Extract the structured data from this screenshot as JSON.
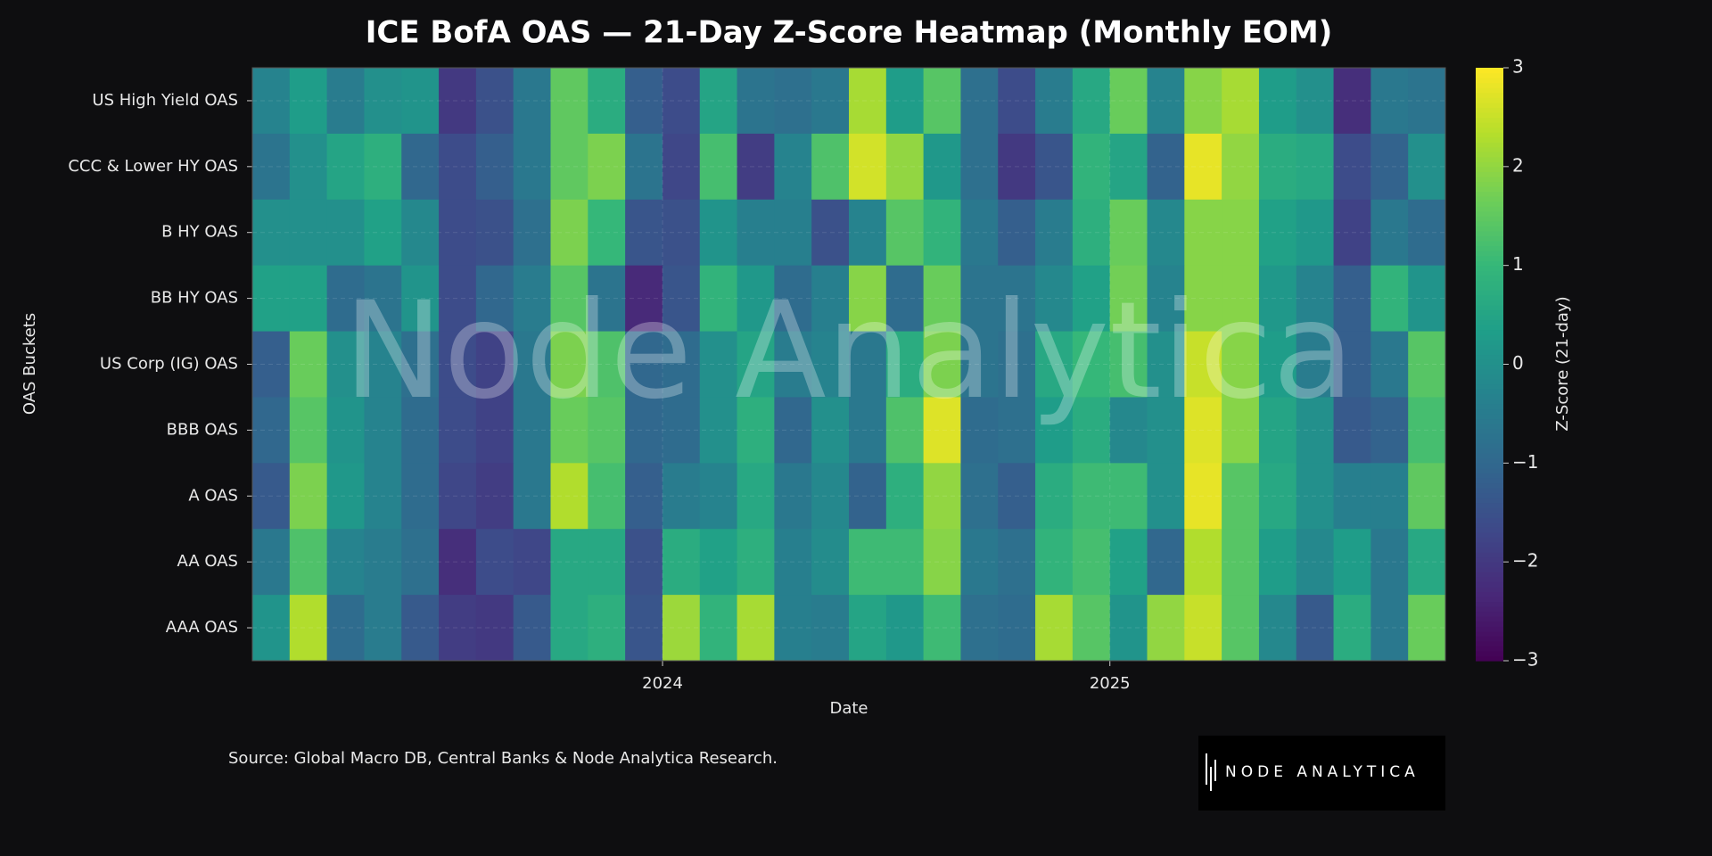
{
  "chart_data": {
    "type": "heatmap",
    "title": "ICE BofA OAS — 21-Day Z-Score Heatmap (Monthly EOM)",
    "x_label": "Date",
    "y_label": "OAS Buckets",
    "colorbar_label": "Z-Score (21-day)",
    "source": "Source: Global Macro DB, Central Banks & Node Analytica Research.",
    "watermark": "Node Analytica",
    "logo": "NODE ANALYTICA",
    "colormap": "viridis",
    "grid": true,
    "xlim": [
      2023.083,
      2025.75
    ],
    "xticks": [
      2024,
      2025
    ],
    "clim": [
      -3,
      3
    ],
    "cticks": [
      {
        "value": -3,
        "label": "−3"
      },
      {
        "value": -2,
        "label": "−2"
      },
      {
        "value": -1,
        "label": "−1"
      },
      0,
      1,
      2,
      3
    ],
    "categories": [
      "US High Yield OAS",
      "CCC & Lower HY OAS",
      "B HY OAS",
      "BB HY OAS",
      "US Corp (IG) OAS",
      "BBB OAS",
      "A OAS",
      "AA OAS",
      "AAA OAS"
    ],
    "values": [
      [
        -0.3,
        0.3,
        -0.5,
        0,
        0.1,
        -2,
        -1.5,
        -0.6,
        1.5,
        0.7,
        -1.2,
        -1.6,
        0.5,
        -0.7,
        -0.8,
        -0.6,
        2.2,
        0.3,
        1.4,
        -0.8,
        -1.6,
        -0.5,
        0.6,
        1.6,
        -0.3,
        1.9,
        2.2,
        0.3,
        0,
        -2.2,
        -0.6,
        -0.7
      ],
      [
        -0.7,
        0,
        0.5,
        0.8,
        -1,
        -1.6,
        -1.2,
        -0.6,
        1.5,
        1.8,
        -0.7,
        -1.7,
        1.2,
        -1.9,
        -0.3,
        1.3,
        2.6,
        2,
        0.2,
        -0.8,
        -2,
        -1.4,
        0.9,
        0.5,
        -1.1,
        2.8,
        2,
        0.7,
        0.6,
        -1.6,
        -1.1,
        0
      ],
      [
        0,
        0,
        0,
        0.4,
        -0.2,
        -1.6,
        -1.5,
        -0.8,
        1.8,
        1,
        -1.4,
        -1.5,
        0.1,
        -0.4,
        -0.4,
        -1.5,
        -0.3,
        1.4,
        0.9,
        -0.6,
        -1.2,
        -0.5,
        0.8,
        1.6,
        -0.2,
        1.9,
        1.9,
        0.4,
        0.2,
        -1.8,
        -0.6,
        -0.9
      ],
      [
        0.4,
        0.4,
        -0.9,
        -0.7,
        0.1,
        -1.6,
        -1,
        -0.5,
        1.4,
        -0.7,
        -2.3,
        -1.4,
        0.9,
        0.2,
        -0.9,
        -0.4,
        1.9,
        -0.9,
        1.6,
        -0.7,
        -0.7,
        -0.2,
        0.4,
        1.7,
        -0.3,
        1.9,
        1.9,
        0.2,
        -0.3,
        -1.2,
        0.9,
        0.1
      ],
      [
        -1.2,
        1.6,
        0,
        -0.3,
        -0.8,
        -1.6,
        -1.8,
        -0.6,
        1.8,
        1.3,
        -1,
        -0.9,
        0,
        0.5,
        -0.5,
        -0.3,
        -0.6,
        0.7,
        1.8,
        -0.7,
        -0.8,
        0.6,
        1,
        1.2,
        0,
        2.5,
        1.9,
        0.3,
        -0.5,
        -1.2,
        -0.6,
        1.4
      ],
      [
        -1,
        1.4,
        0.1,
        -0.3,
        -0.9,
        -1.6,
        -1.8,
        -0.6,
        1.6,
        1.4,
        -1,
        -0.9,
        0,
        0.8,
        -1,
        0,
        -0.6,
        1.3,
        2.7,
        -0.9,
        -0.8,
        0.3,
        0.7,
        -0.2,
        0,
        2.7,
        1.9,
        0.5,
        0,
        -1.3,
        -1.1,
        1.2
      ],
      [
        -1.3,
        1.8,
        0.2,
        -0.3,
        -0.9,
        -1.7,
        -1.9,
        -0.6,
        2.3,
        1.2,
        -1.2,
        -0.5,
        -0.3,
        0.6,
        -0.6,
        -0.2,
        -1.1,
        0.8,
        2,
        -0.8,
        -1.2,
        0.7,
        1.1,
        1.1,
        0,
        2.8,
        1.4,
        0.6,
        0,
        -0.4,
        -0.4,
        1.5
      ],
      [
        -0.6,
        1.3,
        -0.3,
        -0.5,
        -0.8,
        -2.2,
        -1.6,
        -1.7,
        0.6,
        0.6,
        -1.5,
        0.7,
        0.4,
        0.8,
        -0.4,
        -0.1,
        1.1,
        1.1,
        1.9,
        -0.6,
        -0.8,
        0.9,
        1.2,
        0.4,
        -1,
        2.3,
        1.4,
        0.3,
        -0.2,
        0.3,
        -0.6,
        0.6
      ],
      [
        0.1,
        2.3,
        -0.9,
        -0.5,
        -1.3,
        -1.9,
        -2,
        -1.3,
        0.6,
        0.8,
        -1.4,
        2.1,
        0.9,
        2.2,
        -0.4,
        -0.5,
        0.5,
        0.2,
        1.1,
        -0.8,
        -0.9,
        2.2,
        1.4,
        0.1,
        2,
        2.5,
        1.4,
        -0.2,
        -1.3,
        0.7,
        -0.6,
        1.6
      ]
    ]
  }
}
